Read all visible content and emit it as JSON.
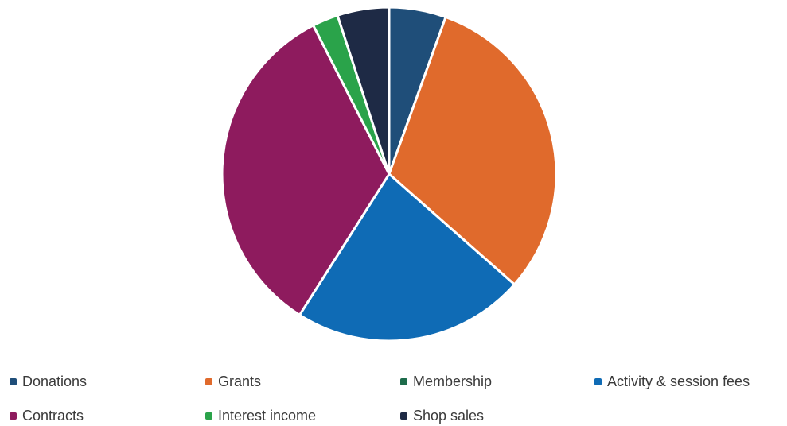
{
  "chart_data": {
    "type": "pie",
    "title": "",
    "legend_position": "bottom",
    "slices": [
      {
        "label": "Donations",
        "value": 5.5,
        "color": "#1f4e79"
      },
      {
        "label": "Grants",
        "value": 31.0,
        "color": "#e06a2c"
      },
      {
        "label": "Membership",
        "value": 0.0,
        "color": "#1d6b4b"
      },
      {
        "label": "Activity & session fees",
        "value": 22.5,
        "color": "#0f6bb5"
      },
      {
        "label": "Contracts",
        "value": 33.5,
        "color": "#8e1b5e"
      },
      {
        "label": "Interest income",
        "value": 2.5,
        "color": "#2aa34a"
      },
      {
        "label": "Shop sales",
        "value": 5.0,
        "color": "#1e2a45"
      }
    ]
  }
}
